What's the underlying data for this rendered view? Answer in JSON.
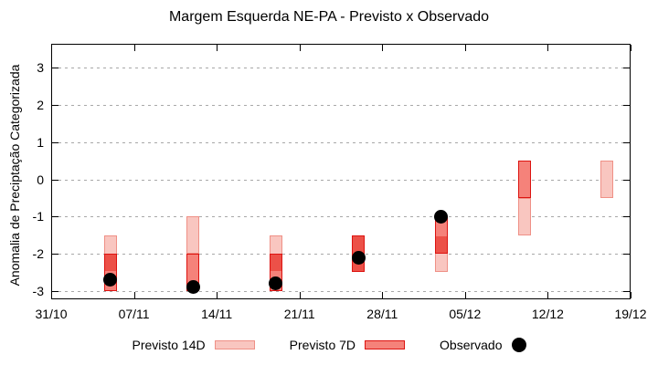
{
  "title": "Margem Esquerda NE-PA - Previsto x Observado",
  "y_axis": {
    "label": "Anomalia de Preciptação Categorizada",
    "ticks": [
      3,
      2,
      1,
      0,
      -1,
      -2,
      -3
    ]
  },
  "x_axis": {
    "tick_labels": [
      "31/10",
      "07/11",
      "14/11",
      "21/11",
      "28/11",
      "05/12",
      "12/12",
      "19/12"
    ]
  },
  "legend": {
    "previsto_14d": "Previsto 14D",
    "previsto_7d": "Previsto 7D",
    "observado": "Observado"
  },
  "colors": {
    "fill_14d": "#f9c6c0",
    "border_14d": "#ef9086",
    "fill_7d": "#f5827a",
    "border_7d": "#dd1310",
    "overlap": "#ec5148",
    "observed": "#000000",
    "grid": "#a8a8a8"
  },
  "chart_data": {
    "type": "bar",
    "title": "Margem Esquerda NE-PA - Previsto x Observado",
    "ylabel": "Anomalia de Preciptação Categorizada",
    "ylim": [
      -3.23,
      3.65
    ],
    "x_axis_start": "31/10",
    "x_axis_end": "19/12",
    "grid": "horizontal-dotted",
    "legend_position": "bottom",
    "groups": [
      {
        "date": "05/11",
        "day": 5,
        "previsto_14d": [
          -2.5,
          -1.5
        ],
        "previsto_7d": [
          -3.0,
          -2.0
        ],
        "observado": -2.7
      },
      {
        "date": "12/11",
        "day": 12,
        "previsto_14d": [
          -2.0,
          -1.0
        ],
        "previsto_7d": [
          -3.0,
          -2.0
        ],
        "observado": -2.9
      },
      {
        "date": "19/11",
        "day": 19,
        "previsto_14d": [
          -2.5,
          -1.5
        ],
        "previsto_7d": [
          -3.0,
          -2.0
        ],
        "observado": -2.8
      },
      {
        "date": "26/11",
        "day": 26,
        "previsto_14d": [
          -2.5,
          -1.5
        ],
        "previsto_7d": [
          -2.5,
          -1.5
        ],
        "observado": -2.1
      },
      {
        "date": "03/12",
        "day": 33,
        "previsto_14d": [
          -2.5,
          -1.5
        ],
        "previsto_7d": [
          -2.0,
          -1.0
        ],
        "observado": -1.0
      },
      {
        "date": "10/12",
        "day": 40,
        "previsto_14d": [
          -1.5,
          -0.5
        ],
        "previsto_7d": [
          -0.5,
          0.5
        ],
        "observado": null
      },
      {
        "date": "17/12",
        "day": 47,
        "previsto_14d": [
          -0.5,
          0.5
        ],
        "previsto_7d": null,
        "observado": null
      }
    ]
  }
}
